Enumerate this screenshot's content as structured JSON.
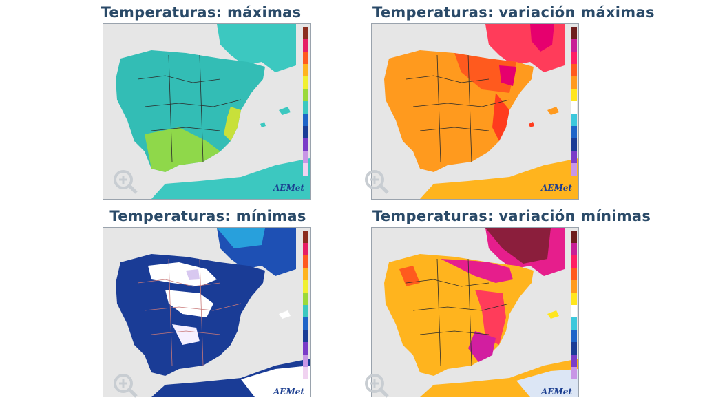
{
  "panels": [
    {
      "title": "Temperaturas: máximas",
      "variant": "max"
    },
    {
      "title": "Temperaturas: variación máximas",
      "variant": "varmax"
    },
    {
      "title": "Temperaturas: mínimas",
      "variant": "min"
    },
    {
      "title": "Temperaturas: variación mínimas",
      "variant": "varmin"
    }
  ],
  "logo_text": "AEMet",
  "colors": {
    "sea": "#e6e6e6",
    "max_land": "#3cc8c0",
    "max_warm": "#9bd93a",
    "varmax_land": "#ff9a1e",
    "varmax_hot": "#e6006e",
    "min_land": "#1a3c96",
    "min_cold": "#ffffff",
    "varmin_land": "#ffb41e",
    "varmin_hot": "#d21ea0",
    "title": "#2a4a68"
  },
  "icons": [
    "zoom-in-icon",
    "aemet-logo"
  ]
}
